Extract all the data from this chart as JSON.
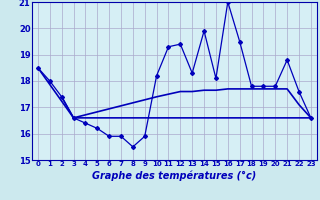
{
  "xlabel": "Graphe des températures (°c)",
  "xlim": [
    -0.5,
    23.5
  ],
  "ylim": [
    15,
    21
  ],
  "yticks": [
    15,
    16,
    17,
    18,
    19,
    20,
    21
  ],
  "xticks": [
    0,
    1,
    2,
    3,
    4,
    5,
    6,
    7,
    8,
    9,
    10,
    11,
    12,
    13,
    14,
    15,
    16,
    17,
    18,
    19,
    20,
    21,
    22,
    23
  ],
  "background_color": "#cce9ee",
  "plot_bg_color": "#d6eff5",
  "grid_color": "#aaaacc",
  "line_color": "#0000bb",
  "line1_x": [
    0,
    1,
    2,
    3,
    4,
    5,
    6,
    7,
    8,
    9,
    10,
    11,
    12,
    13,
    14,
    15,
    16,
    17,
    18,
    19,
    20,
    21,
    22,
    23
  ],
  "line1_y": [
    18.5,
    18.0,
    17.4,
    16.6,
    16.4,
    16.2,
    15.9,
    15.9,
    15.5,
    15.9,
    18.2,
    19.3,
    19.4,
    18.3,
    19.9,
    18.1,
    21.0,
    19.5,
    17.8,
    17.8,
    17.8,
    18.8,
    17.6,
    16.6
  ],
  "line2_x": [
    0,
    3,
    10,
    23
  ],
  "line2_y": [
    18.5,
    16.6,
    16.6,
    16.6
  ],
  "line3_x": [
    2,
    3,
    10,
    11,
    12,
    13,
    14,
    15,
    16,
    17,
    18,
    19,
    20,
    21,
    22,
    23
  ],
  "line3_y": [
    17.4,
    16.6,
    17.4,
    17.5,
    17.6,
    17.6,
    17.65,
    17.65,
    17.7,
    17.7,
    17.7,
    17.7,
    17.7,
    17.7,
    17.1,
    16.6
  ]
}
